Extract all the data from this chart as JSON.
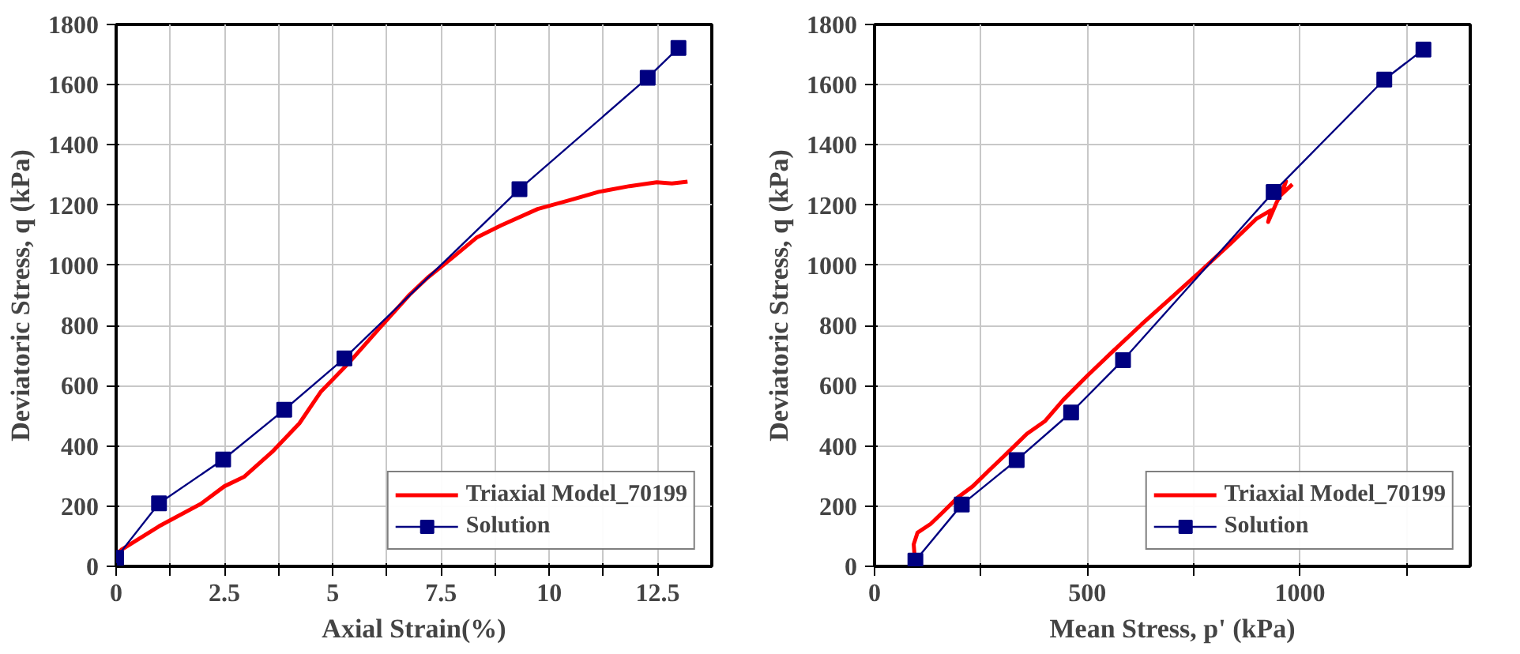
{
  "chart_data": [
    {
      "type": "line",
      "xlabel": "Axial Strain(%)",
      "ylabel": "Deviatoric Stress, q (kPa)",
      "xlim": [
        0,
        13.75
      ],
      "ylim": [
        0,
        1800
      ],
      "xticks": [
        0,
        {
          "value": 1.25,
          "label": null
        },
        2.5,
        {
          "value": 3.75,
          "label": null
        },
        5,
        {
          "value": 6.25,
          "label": null
        },
        7.5,
        {
          "value": 8.75,
          "label": null
        },
        10,
        {
          "value": 11.25,
          "label": null
        },
        12.5
      ],
      "yticks": [
        0,
        200,
        400,
        600,
        800,
        1000,
        1200,
        1400,
        1600,
        1800
      ],
      "grid": true,
      "legend": "bottom right",
      "series": [
        {
          "name": "Triaxial Model_70199",
          "color": "#ff0000",
          "marker": "none",
          "x": [
            0,
            0.14,
            0.99,
            1.97,
            2.5,
            2.96,
            3.6,
            4.23,
            4.72,
            5.36,
            6.06,
            6.77,
            7.19,
            7.76,
            8.32,
            8.89,
            9.73,
            10.44,
            11.14,
            11.85,
            12.48,
            12.83,
            13.19
          ],
          "values": [
            40,
            57,
            133,
            209,
            266,
            298,
            380,
            475,
            579,
            674,
            788,
            902,
            959,
            1025,
            1092,
            1133,
            1187,
            1215,
            1244,
            1263,
            1276,
            1272,
            1278
          ]
        },
        {
          "name": "Solution",
          "color": "#000080",
          "marker": "square",
          "x": [
            0,
            0.99,
            2.47,
            3.88,
            5.27,
            9.31,
            12.27,
            12.98
          ],
          "values": [
            28,
            209,
            355,
            520,
            691,
            1253,
            1623,
            1722
          ]
        }
      ]
    },
    {
      "type": "line",
      "xlabel": "Mean Stress, p' (kPa)",
      "ylabel": "Deviatoric Stress, q (kPa)",
      "xlim": [
        0,
        1400
      ],
      "ylim": [
        0,
        1800
      ],
      "xticks": [
        0,
        {
          "value": 250,
          "label": null
        },
        500,
        {
          "value": 750,
          "label": null
        },
        1000,
        {
          "value": 1250,
          "label": null
        }
      ],
      "yticks": [
        0,
        200,
        400,
        600,
        800,
        1000,
        1200,
        1400,
        1600,
        1800
      ],
      "grid": true,
      "legend": "bottom right",
      "series": [
        {
          "name": "Triaxial Model_70199",
          "color": "#ff0000",
          "marker": "none",
          "x": [
            96,
            92,
            101,
            132,
            160,
            195,
            231,
            273,
            316,
            358,
            401,
            443,
            500,
            557,
            627,
            698,
            769,
            840,
            897,
            932,
            925,
            946,
            960,
            967,
            953,
            982
          ],
          "values": [
            0,
            73,
            112,
            141,
            179,
            228,
            266,
            324,
            382,
            440,
            483,
            552,
            633,
            710,
            803,
            893,
            984,
            1077,
            1154,
            1183,
            1144,
            1212,
            1250,
            1279,
            1231,
            1269
          ]
        },
        {
          "name": "Solution",
          "color": "#000080",
          "marker": "square",
          "x": [
            96,
            205,
            334,
            462,
            584,
            938,
            1198,
            1290
          ],
          "values": [
            19,
            205,
            353,
            511,
            685,
            1244,
            1617,
            1717
          ]
        }
      ]
    }
  ]
}
